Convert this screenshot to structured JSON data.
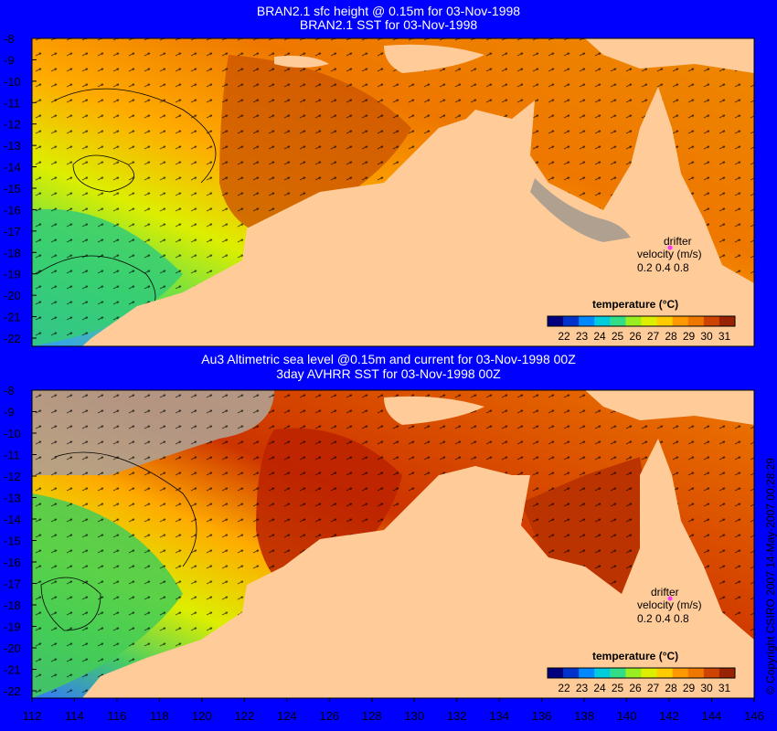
{
  "titles": {
    "top_line1": "BRAN2.1 sfc height @ 0.15m for 03-Nov-1998",
    "top_line2": "BRAN2.1 SST for 03-Nov-1998",
    "bottom_line1": "Au3 Altimetric sea level  @0.15m and current for 03-Nov-1998 00Z",
    "bottom_line2": "3day AVHRR SST for 03-Nov-1998 00Z"
  },
  "y_ticks": [
    "-8",
    "-9",
    "-10",
    "-11",
    "-12",
    "-13",
    "-14",
    "-15",
    "-16",
    "-17",
    "-18",
    "-19",
    "-20",
    "-21",
    "-22"
  ],
  "x_ticks": [
    "112",
    "114",
    "116",
    "118",
    "120",
    "122",
    "124",
    "126",
    "128",
    "130",
    "132",
    "134",
    "136",
    "138",
    "140",
    "142",
    "144",
    "146"
  ],
  "legend": {
    "title": "temperature (°C)",
    "labels": [
      "22",
      "23",
      "24",
      "25",
      "26",
      "27",
      "28",
      "29",
      "30",
      "31"
    ],
    "colors": [
      "#00007f",
      "#0033cc",
      "#0088ff",
      "#00ccdd",
      "#33dd88",
      "#99ee22",
      "#ddee00",
      "#ffcc00",
      "#ff9900",
      "#ee7700",
      "#cc4400",
      "#992200"
    ],
    "drifter_line1": "drifter",
    "drifter_line2": "velocity (m/s)",
    "drifter_values": "0.2  0.4  0.8"
  },
  "copyright": "© Copyright CSIRO 2007   14-May-2007 00:28:29",
  "colors": {
    "background": "#0000ff",
    "land": "#ffcc99",
    "nodata": "#b0a090",
    "drifter_marker": "#ff33ff"
  }
}
